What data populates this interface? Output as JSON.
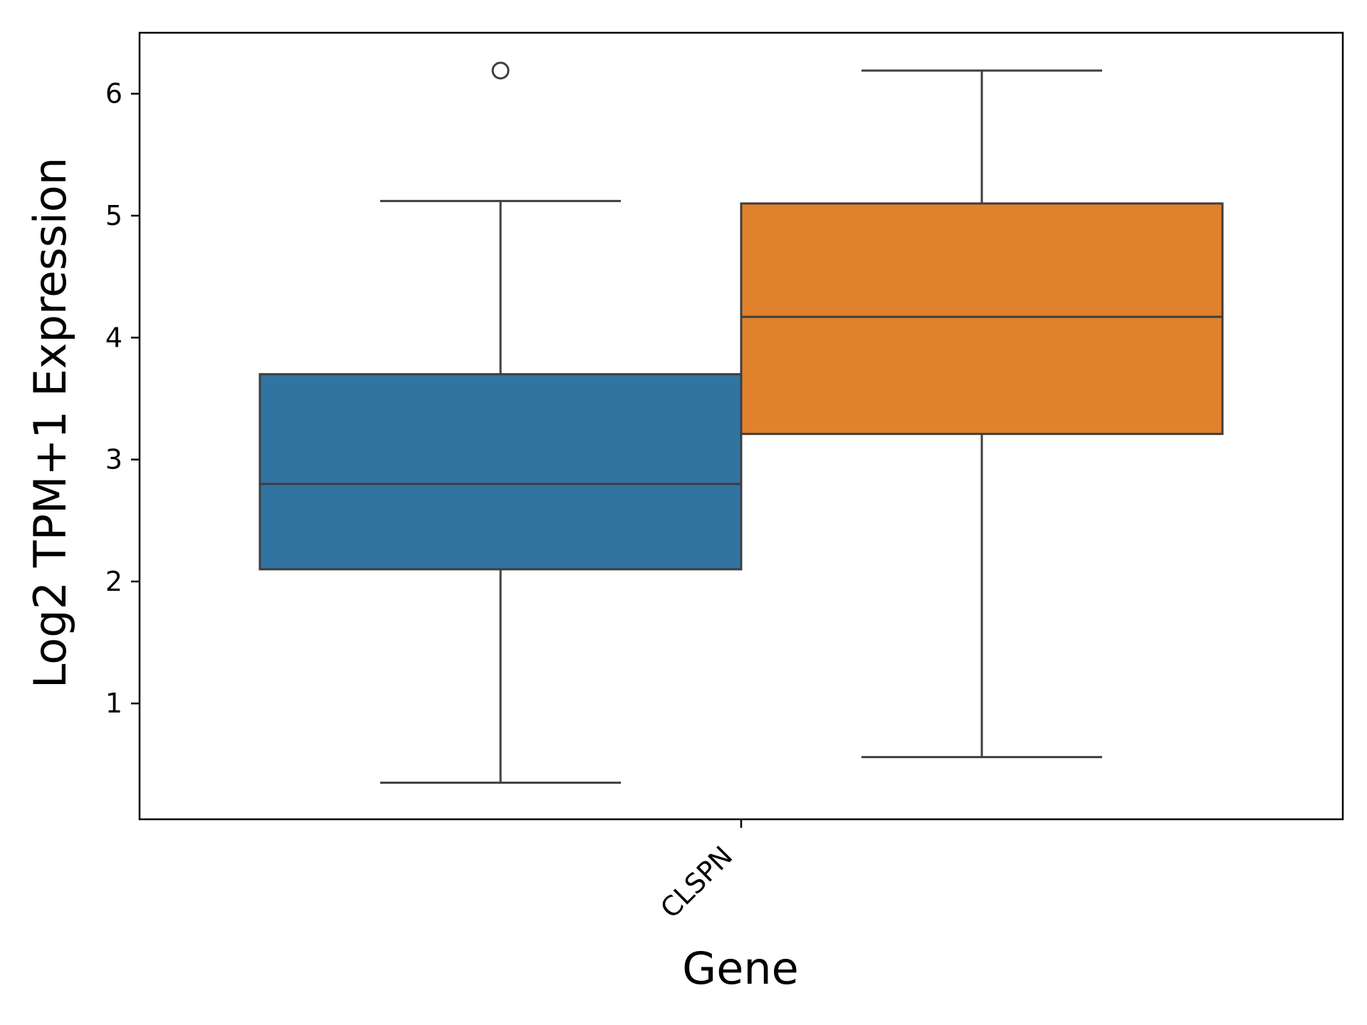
{
  "chart_data": {
    "type": "box",
    "xlabel": "Gene",
    "ylabel": "Log2 TPM+1 Expression",
    "categories": [
      "CLSPN"
    ],
    "ylim": [
      0.05,
      6.5
    ],
    "yticks": [
      1,
      2,
      3,
      4,
      5,
      6
    ],
    "grid": false,
    "legend": "none",
    "x_tick_rotation": 45,
    "series": [
      {
        "color": "#3274a1",
        "q1": 2.1,
        "median": 2.8,
        "q3": 3.7,
        "whisker_low": 0.35,
        "whisker_high": 5.12,
        "outliers": [
          6.19
        ]
      },
      {
        "color": "#e1812c",
        "q1": 3.21,
        "median": 4.17,
        "q3": 5.1,
        "whisker_low": 0.56,
        "whisker_high": 6.19,
        "outliers": []
      }
    ]
  },
  "colors": {
    "box_edge": "#3f3f3f",
    "axes": "#000000",
    "background": "#ffffff"
  }
}
